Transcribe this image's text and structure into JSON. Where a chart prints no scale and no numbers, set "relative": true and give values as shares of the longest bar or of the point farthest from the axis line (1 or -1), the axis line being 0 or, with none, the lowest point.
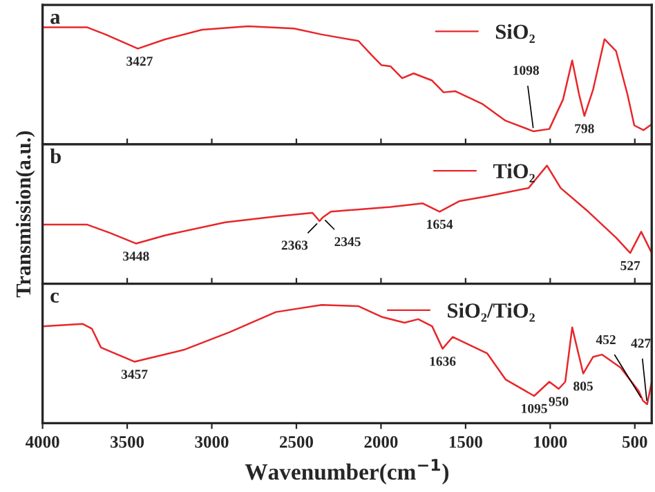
{
  "chart_data": [
    {
      "type": "line",
      "title": "a",
      "relative": true,
      "xlim": [
        4000,
        400
      ],
      "xticks": [
        {
          "value": 4000,
          "label": null
        },
        {
          "value": 3500,
          "label": null
        },
        {
          "value": 3000,
          "label": null
        },
        {
          "value": 2500,
          "label": null
        },
        {
          "value": 2000,
          "label": null
        },
        {
          "value": 1500,
          "label": null
        },
        {
          "value": 1000,
          "label": null
        },
        {
          "value": 500,
          "label": null
        }
      ],
      "tick_labels": false,
      "legend": "top right",
      "x": [
        4000,
        3736,
        3628,
        3437,
        3274,
        3057,
        2785,
        2514,
        2351,
        2133,
        2052,
        1997,
        1943,
        1875,
        1807,
        1698,
        1630,
        1562,
        1399,
        1264,
        1098,
        1005,
        924,
        870,
        829,
        798,
        747,
        679,
        611,
        543,
        503,
        448,
        400
      ],
      "series": [
        {
          "name": "SiO₂",
          "color": "#e8262a",
          "values": [
            0.99,
            0.99,
            0.93,
            0.81,
            0.89,
            0.97,
            1.0,
            0.98,
            0.93,
            0.875,
            0.75,
            0.67,
            0.66,
            0.56,
            0.6,
            0.54,
            0.44,
            0.45,
            0.34,
            0.2,
            0.11,
            0.13,
            0.38,
            0.71,
            0.42,
            0.24,
            0.46,
            0.89,
            0.79,
            0.42,
            0.16,
            0.12,
            0.17
          ]
        }
      ],
      "annotations": [
        {
          "text": "3427",
          "x": 3427,
          "y": 0.81
        },
        {
          "text": "1098",
          "x": 1098,
          "y": 0.11
        },
        {
          "text": "798",
          "x": 798,
          "y": 0.24
        }
      ]
    },
    {
      "type": "line",
      "title": "b",
      "relative": true,
      "ylabel": "Transmission(a.u.)",
      "xlim": [
        4000,
        400
      ],
      "xticks": [
        {
          "value": 4000,
          "label": null
        },
        {
          "value": 3500,
          "label": null
        },
        {
          "value": 3000,
          "label": null
        },
        {
          "value": 2500,
          "label": null
        },
        {
          "value": 2000,
          "label": null
        },
        {
          "value": 1500,
          "label": null
        },
        {
          "value": 1000,
          "label": null
        },
        {
          "value": 500,
          "label": null
        }
      ],
      "tick_labels": false,
      "legend": "top right",
      "x": [
        4000,
        3736,
        3601,
        3448,
        3274,
        2921,
        2622,
        2405,
        2363,
        2345,
        2296,
        1943,
        1753,
        1654,
        1535,
        1372,
        1128,
        1019,
        938,
        775,
        611,
        527,
        462,
        400
      ],
      "series": [
        {
          "name": "TiO₂",
          "color": "#e8262a",
          "values": [
            0.5,
            0.5,
            0.43,
            0.34,
            0.41,
            0.52,
            0.57,
            0.6,
            0.53,
            0.56,
            0.61,
            0.65,
            0.68,
            0.61,
            0.7,
            0.74,
            0.81,
            1.0,
            0.81,
            0.61,
            0.39,
            0.26,
            0.44,
            0.26
          ]
        }
      ],
      "annotations": [
        {
          "text": "3448",
          "x": 3448,
          "y": 0.34
        },
        {
          "text": "2363",
          "x": 2363,
          "y": 0.53
        },
        {
          "text": "2345",
          "x": 2345,
          "y": 0.56
        },
        {
          "text": "1654",
          "x": 1654,
          "y": 0.61
        },
        {
          "text": "527",
          "x": 527,
          "y": 0.26
        }
      ]
    },
    {
      "type": "line",
      "title": "c",
      "relative": true,
      "xlabel": "Wavenumber(cm$^{−1}$)",
      "xlim": [
        4000,
        400
      ],
      "xticks": [
        4000,
        3500,
        3000,
        2500,
        2000,
        1500,
        1000,
        500
      ],
      "tick_labels": "x",
      "legend": "top right",
      "x": [
        4000,
        3764,
        3709,
        3655,
        3457,
        3166,
        2894,
        2622,
        2351,
        2133,
        1997,
        1861,
        1780,
        1698,
        1636,
        1576,
        1372,
        1264,
        1095,
        1005,
        950,
        911,
        870,
        805,
        747,
        693,
        584,
        476,
        452,
        427,
        400
      ],
      "series": [
        {
          "name": "SiO₂/TiO₂",
          "color": "#e8262a",
          "values": [
            0.82,
            0.84,
            0.8,
            0.64,
            0.52,
            0.62,
            0.77,
            0.94,
            1.0,
            0.99,
            0.9,
            0.85,
            0.88,
            0.82,
            0.63,
            0.73,
            0.59,
            0.37,
            0.23,
            0.35,
            0.29,
            0.35,
            0.81,
            0.42,
            0.56,
            0.58,
            0.47,
            0.27,
            0.19,
            0.16,
            0.35
          ]
        }
      ],
      "annotations": [
        {
          "text": "3457",
          "x": 3457,
          "y": 0.52
        },
        {
          "text": "1636",
          "x": 1636,
          "y": 0.63
        },
        {
          "text": "1095",
          "x": 1095,
          "y": 0.23
        },
        {
          "text": "950",
          "x": 950,
          "y": 0.29
        },
        {
          "text": "805",
          "x": 805,
          "y": 0.42
        },
        {
          "text": "452",
          "x": 452,
          "y": 0.19
        },
        {
          "text": "427",
          "x": 427,
          "y": 0.16
        }
      ]
    }
  ]
}
